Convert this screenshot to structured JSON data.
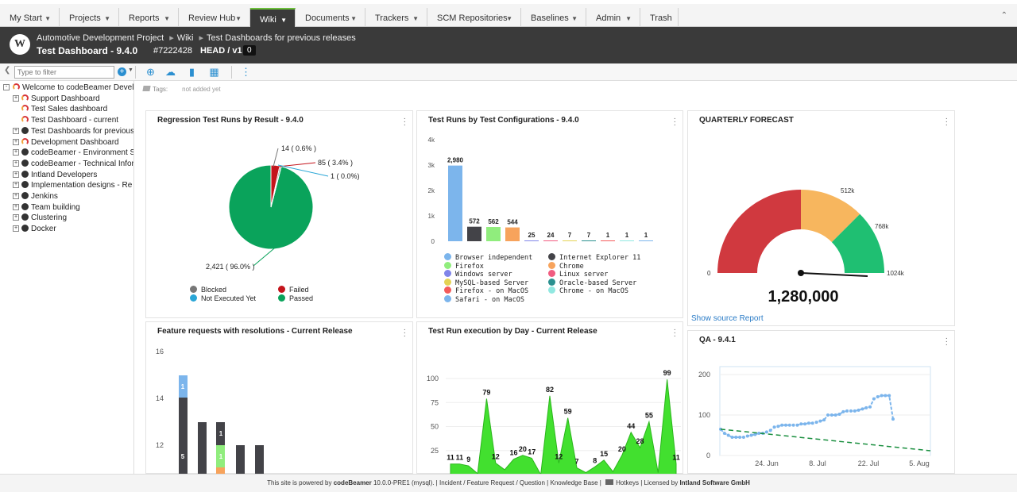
{
  "nav": {
    "tabs": [
      {
        "label": "My Start",
        "left": 0,
        "width": 75
      },
      {
        "label": "Projects",
        "left": 75,
        "width": 75
      },
      {
        "label": "Reports",
        "left": 150,
        "width": 75
      },
      {
        "label": "Review Hub",
        "left": 225,
        "width": 90
      },
      {
        "label": "Wiki",
        "left": 315,
        "width": 57
      },
      {
        "label": "Documents",
        "left": 372,
        "width": 88
      },
      {
        "label": "Trackers",
        "left": 460,
        "width": 78
      },
      {
        "label": "SCM Repositories",
        "left": 538,
        "width": 118
      },
      {
        "label": "Baselines",
        "left": 656,
        "width": 82
      },
      {
        "label": "Admin",
        "left": 738,
        "width": 68
      },
      {
        "label": "Trash",
        "left": 806,
        "width": 48
      }
    ],
    "active": "Wiki",
    "collapse_icon": "chevron-up-icon"
  },
  "header": {
    "logo": "W",
    "breadcrumb": [
      "Automotive Development Project",
      "Wiki",
      "Test Dashboards for previous releases"
    ],
    "title": "Test Dashboard - 9.4.0",
    "id": "#7222428",
    "revision": "HEAD / v1",
    "count": "0"
  },
  "toolbar": {
    "filter_placeholder": "Type to filter",
    "icons": [
      "add-page-icon",
      "upload-icon",
      "chart-add-icon",
      "layout-icon",
      "more-icon"
    ]
  },
  "tree": {
    "items": [
      {
        "label": "Welcome to codeBeamer Devel",
        "icon": "gauge",
        "level": 0,
        "exp": "-"
      },
      {
        "label": "Support Dashboard",
        "icon": "gauge",
        "level": 1,
        "exp": "+"
      },
      {
        "label": "Test Sales dashboard",
        "icon": "gauge",
        "level": 1,
        "exp": ""
      },
      {
        "label": "Test Dashboard - current",
        "icon": "gauge",
        "level": 1,
        "exp": ""
      },
      {
        "label": "Test Dashboards for previous",
        "icon": "dark",
        "level": 1,
        "exp": "+"
      },
      {
        "label": "Development Dashboard",
        "icon": "gauge",
        "level": 1,
        "exp": "+"
      },
      {
        "label": "codeBeamer - Environment S",
        "icon": "dark",
        "level": 1,
        "exp": "+"
      },
      {
        "label": "codeBeamer - Technical Infor",
        "icon": "dark",
        "level": 1,
        "exp": "+"
      },
      {
        "label": "Intland Developers",
        "icon": "dark",
        "level": 1,
        "exp": "+"
      },
      {
        "label": "Implementation designs - Re",
        "icon": "dark",
        "level": 1,
        "exp": "+"
      },
      {
        "label": "Jenkins",
        "icon": "dark",
        "level": 1,
        "exp": "+"
      },
      {
        "label": "Team building",
        "icon": "dark",
        "level": 1,
        "exp": "+"
      },
      {
        "label": "Clustering",
        "icon": "dark",
        "level": 1,
        "exp": "+"
      },
      {
        "label": "Docker",
        "icon": "dark",
        "level": 1,
        "exp": "+"
      }
    ]
  },
  "tags": {
    "label": "Tags:",
    "value": "not added yet"
  },
  "panels": {
    "p1": {
      "title": "Regression Test Runs by Result - 9.4.0"
    },
    "p2": {
      "title": "Test Runs by Test Configurations - 9.4.0"
    },
    "p3": {
      "title": "QUARTERLY FORECAST",
      "link": "Show source Report"
    },
    "p4": {
      "title": "Feature requests with resolutions - Current Release"
    },
    "p5": {
      "title": "Test Run execution by Day - Current Release"
    },
    "p6": {
      "title": "QA - 9.4.1"
    }
  },
  "chart_data": [
    {
      "type": "pie",
      "title": "Regression Test Runs by Result - 9.4.0",
      "slices": [
        {
          "name": "Passed",
          "value": 2421,
          "label": "2,421 ( 96.0% )",
          "color": "#0aa35b"
        },
        {
          "name": "Failed",
          "value": 85,
          "label": "85 ( 3.4% )",
          "color": "#c4141b"
        },
        {
          "name": "Blocked",
          "value": 14,
          "label": "14 ( 0.6% )",
          "color": "#777777"
        },
        {
          "name": "Not Executed Yet",
          "value": 1,
          "label": "1 ( 0.0%)",
          "color": "#2aa6d6"
        }
      ],
      "legend": [
        "Blocked",
        "Failed",
        "Not Executed Yet",
        "Passed"
      ]
    },
    {
      "type": "bar",
      "title": "Test Runs by Test Configurations - 9.4.0",
      "y_ticks": [
        "0",
        "1k",
        "2k",
        "3k",
        "4k"
      ],
      "ylim": [
        0,
        4000
      ],
      "values": [
        2980,
        572,
        562,
        544,
        25,
        24,
        7,
        7,
        1,
        1,
        1
      ],
      "value_labels": [
        "2,980",
        "572",
        "562",
        "544",
        "25",
        "24",
        "7",
        "7",
        "1",
        "1",
        "1"
      ],
      "colors": [
        "#7cb5ec",
        "#434348",
        "#90ed7d",
        "#f7a35c",
        "#8085e9",
        "#f15c80",
        "#e4d354",
        "#2b908f",
        "#f45b5b",
        "#91e8e1",
        "#7cb5ec"
      ],
      "legend": [
        {
          "name": "Browser independent",
          "color": "#7cb5ec"
        },
        {
          "name": "Internet Explorer 11",
          "color": "#434348"
        },
        {
          "name": "Firefox",
          "color": "#90ed7d"
        },
        {
          "name": "Chrome",
          "color": "#f7a35c"
        },
        {
          "name": "Windows server",
          "color": "#8085e9"
        },
        {
          "name": "Linux server",
          "color": "#f15c80"
        },
        {
          "name": "MySQL-based Server",
          "color": "#e4d354"
        },
        {
          "name": "Oracle-based Server",
          "color": "#2b908f"
        },
        {
          "name": "Firefox - on MacOS",
          "color": "#f45b5b"
        },
        {
          "name": "Chrome - on MacOS",
          "color": "#91e8e1"
        },
        {
          "name": "Safari - on MacOS",
          "color": "#7cb5ec"
        }
      ]
    },
    {
      "type": "gauge",
      "title": "QUARTERLY FORECAST",
      "value": 1280000,
      "value_label": "1,280,000",
      "min_label": "0",
      "max_label": "1024k",
      "ticks": [
        "512k",
        "768k"
      ],
      "bands": [
        {
          "from": 0,
          "to": 512,
          "color": "#d0393f"
        },
        {
          "from": 512,
          "to": 768,
          "color": "#f7b65e"
        },
        {
          "from": 768,
          "to": 1024,
          "color": "#1fbf72"
        }
      ]
    },
    {
      "type": "bar",
      "title": "Feature requests with resolutions - Current Release",
      "y_ticks": [
        "12",
        "14",
        "16"
      ],
      "stacked_labels": [
        "1",
        "5",
        "1",
        "1"
      ]
    },
    {
      "type": "area",
      "title": "Test Run execution by Day - Current Release",
      "y_ticks": [
        "25",
        "50",
        "75",
        "100"
      ],
      "ylim": [
        0,
        105
      ],
      "values": [
        11,
        11,
        9,
        1,
        79,
        12,
        5,
        16,
        20,
        17,
        0,
        82,
        12,
        59,
        7,
        2,
        8,
        15,
        3,
        20,
        44,
        28,
        55,
        2,
        99,
        11
      ],
      "labels": [
        "11",
        "11",
        "9",
        "",
        "79",
        "12",
        "",
        "16",
        "20",
        "17",
        "",
        "82",
        "12",
        "59",
        "7",
        "",
        "8",
        "15",
        "",
        "20",
        "44",
        "28",
        "55",
        "",
        "99",
        "11"
      ]
    },
    {
      "type": "line",
      "title": "QA - 9.4.1",
      "y_ticks": [
        "0",
        "100",
        "200"
      ],
      "ylim": [
        0,
        230
      ],
      "x_ticks": [
        "24. Jun",
        "8. Jul",
        "22. Jul",
        "5. Aug"
      ],
      "series": [
        {
          "color": "#7cb5ec",
          "values": [
            65,
            55,
            50,
            45,
            45,
            45,
            45,
            48,
            50,
            52,
            55,
            55,
            58,
            62,
            70,
            72,
            75,
            75,
            75,
            75,
            75,
            78,
            78,
            80,
            80,
            82,
            85,
            88,
            100,
            100,
            100,
            102,
            108,
            110,
            110,
            110,
            112,
            115,
            118,
            120,
            140,
            145,
            148,
            148,
            148,
            90
          ]
        },
        {
          "color": "#1a8f3f",
          "values": [
            65,
            0
          ]
        }
      ]
    }
  ],
  "footer": {
    "powered": "This site is powered by",
    "product": "codeBeamer",
    "version": "10.0.0-PRE1 (mysql).",
    "links": [
      "Incident / Feature Request / Question",
      "Knowledge Base",
      "Hotkeys"
    ],
    "license": "Licensed by",
    "company": "Intland Software GmbH"
  }
}
